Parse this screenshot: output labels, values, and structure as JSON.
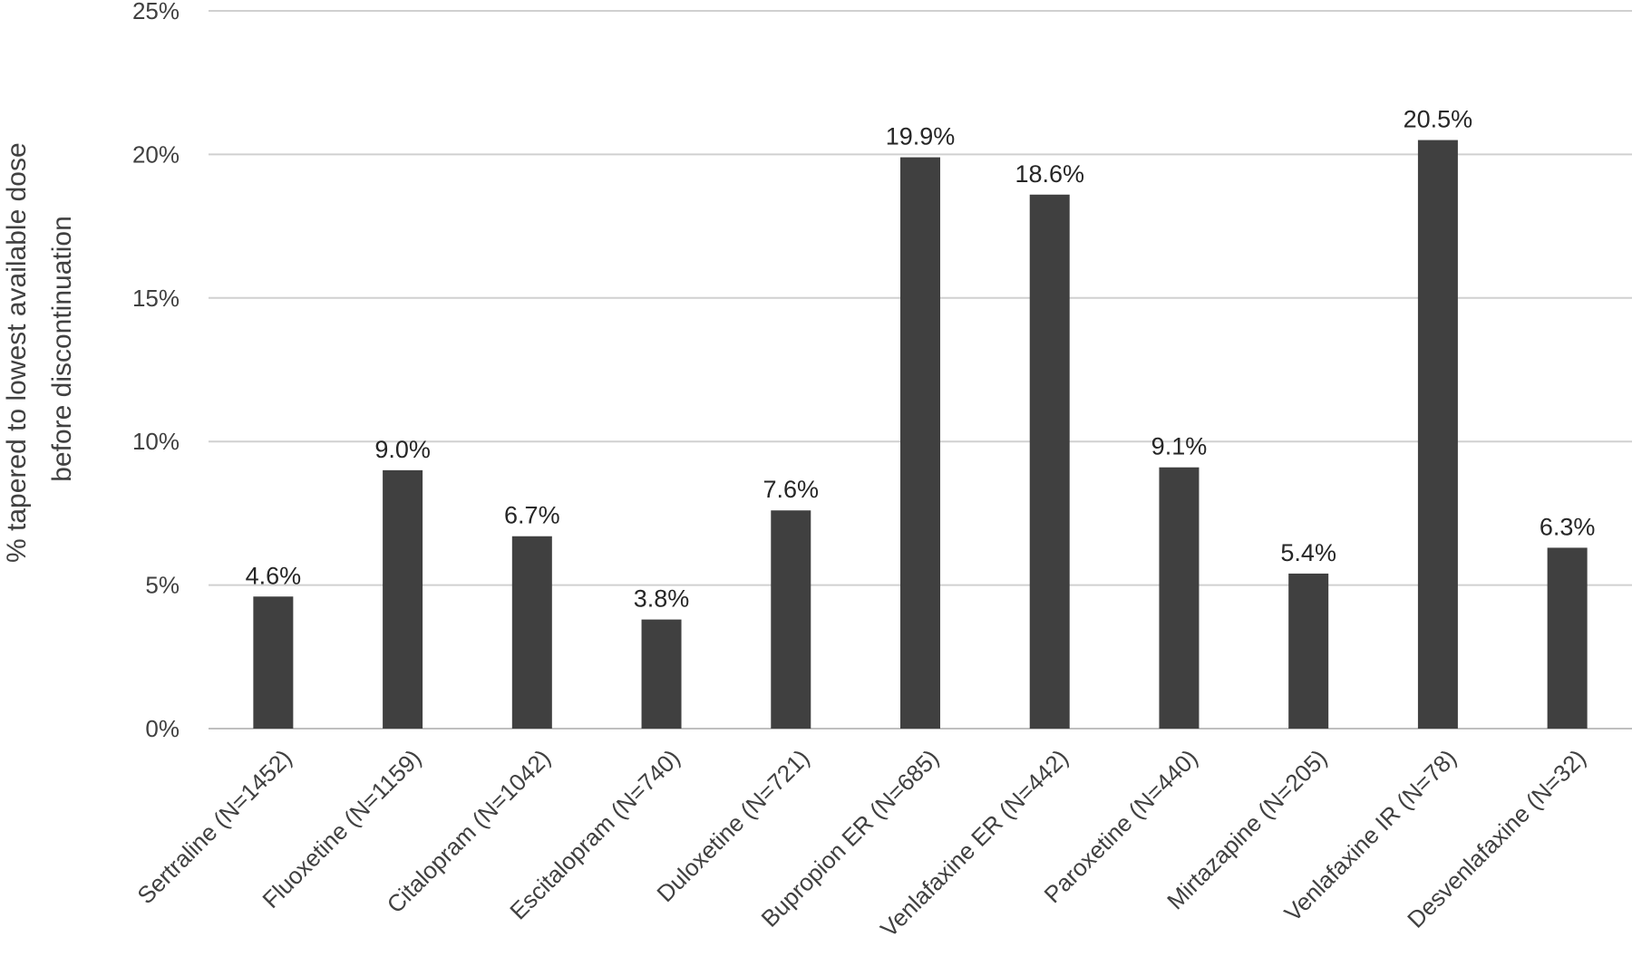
{
  "chart_data": {
    "type": "bar",
    "title": "",
    "ylabel_lines": [
      "% tapered to lowest available dose",
      "before discontinuation"
    ],
    "xlabel": "",
    "ylim": [
      0,
      25
    ],
    "yticks": [
      0,
      5,
      10,
      15,
      20,
      25
    ],
    "ytick_labels": [
      "0%",
      "5%",
      "10%",
      "15%",
      "20%",
      "25%"
    ],
    "grid": true,
    "legend": "none",
    "bar_color": "#404040",
    "categories": [
      "Sertraline (N=1452)",
      "Fluoxetine (N=1159)",
      "Citalopram (N=1042)",
      "Escitalopram (N=740)",
      "Duloxetine (N=721)",
      "Bupropion ER (N=685)",
      "Venlafaxine ER (N=442)",
      "Paroxetine (N=440)",
      "Mirtazapine (N=205)",
      "Venlafaxine IR (N=78)",
      "Desvenlafaxine (N=32)"
    ],
    "values": [
      4.6,
      9.0,
      6.7,
      3.8,
      7.6,
      19.9,
      18.6,
      9.1,
      5.4,
      20.5,
      6.3
    ],
    "data_labels": [
      "4.6%",
      "9.0%",
      "6.7%",
      "3.8%",
      "7.6%",
      "19.9%",
      "18.6%",
      "9.1%",
      "5.4%",
      "20.5%",
      "6.3%"
    ]
  }
}
